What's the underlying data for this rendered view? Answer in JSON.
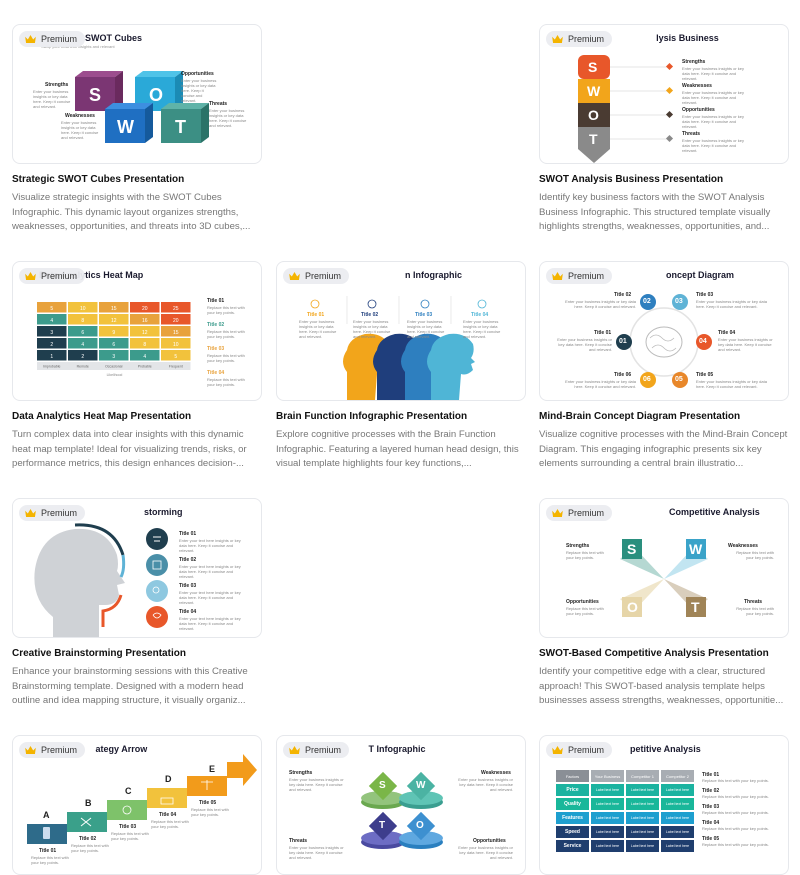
{
  "badge_label": "Premium",
  "cards": [
    {
      "title": "Strategic SWOT Cubes Presentation",
      "desc": "Visualize strategic insights with the SWOT Cubes Infographic. This dynamic layout organizes strengths, weaknesses, opportunities, and threats into 3D cubes,...",
      "slide_title": "SWOT Cubes",
      "slide_sub": "Swap your business insights and relevant",
      "labels": [
        "Strengths",
        "Weaknesses",
        "Opportunities",
        "Threats"
      ],
      "letters": [
        "S",
        "W",
        "O",
        "T"
      ],
      "body_text": "Enter your business insights or key data here. Keep it concise and relevant."
    },
    {
      "title": "SWOT Analysis Business Presentation",
      "desc": "Identify key business factors with the SWOT Analysis Business Infographic. This structured template visually highlights strengths, weaknesses, opportunities, and...",
      "slide_title": "SWOT Analysis Business",
      "labels": [
        "Strengths",
        "Weaknesses",
        "Opportunities",
        "Threats"
      ],
      "letters": [
        "S",
        "W",
        "O",
        "T"
      ],
      "body_text": "Enter your business insights or key data here. Keep it concise and relevant."
    },
    {
      "title": "Data Analytics Heat Map Presentation",
      "desc": "Turn complex data into clear insights with this dynamic heat map template! Ideal for visualizing trends, risks, or performance metrics, this design enhances decision-...",
      "slide_title": "Data Analytics Heat Map",
      "titles": [
        "Title 01",
        "Title 02",
        "Title 03",
        "Title 04"
      ],
      "body_text": "Replace this text with your key points.",
      "grid_rows": [
        [
          "5",
          "10",
          "15",
          "20",
          "25"
        ],
        [
          "4",
          "8",
          "12",
          "16",
          "20"
        ],
        [
          "3",
          "6",
          "9",
          "12",
          "15"
        ],
        [
          "2",
          "4",
          "6",
          "8",
          "10"
        ],
        [
          "1",
          "2",
          "3",
          "4",
          "5"
        ]
      ],
      "col_labels": [
        "Improbable",
        "Remote",
        "Occasional",
        "Probable",
        "Frequent"
      ],
      "axis_label": "Likelihood"
    },
    {
      "title": "Brain Function Infographic Presentation",
      "desc": "Explore cognitive processes with the Brain Function Infographic. Featuring a layered human head design, this visual template highlights four key functions,...",
      "slide_title": "Brain Function Infographic",
      "titles": [
        "Title 01",
        "Title 02",
        "Title 03",
        "Title 04"
      ],
      "body_text": "Enter your business insights or key data here. Keep it concise and relevant."
    },
    {
      "title": "Mind-Brain Concept Diagram Presentation",
      "desc": "Visualize cognitive processes with the Mind-Brain Concept Diagram. This engaging infographic presents six key elements surrounding a central brain illustratio...",
      "slide_title": "Mind-Brain Concept Diagram",
      "titles": [
        "Title 01",
        "Title 02",
        "Title 03",
        "Title 04",
        "Title 05",
        "Title 06"
      ],
      "numbers": [
        "01",
        "02",
        "03",
        "04",
        "05",
        "06"
      ],
      "body_text": "Enter your business insights or key data here. Keep it concise and relevant."
    },
    {
      "title": "Creative Brainstorming Presentation",
      "desc": "Enhance your brainstorming sessions with this Creative Brainstorming template. Designed with a modern head outline and idea mapping structure, it visually organiz...",
      "slide_title": "Creative Brainstorming",
      "titles": [
        "Title 01",
        "Title 02",
        "Title 03",
        "Title 04"
      ],
      "body_text": "Enter your text here insights or key data here. Keep it concise and relevant."
    },
    {
      "title": "SWOT-Based Competitive Analysis Presentation",
      "desc": "Identify your competitive edge with a clear, structured approach! This SWOT-based analysis template helps businesses assess strengths, weaknesses, opportunitie...",
      "slide_title": "SWOT-Based Competitive Analysis",
      "labels": [
        "Strengths",
        "Weaknesses",
        "Opportunities",
        "Threats"
      ],
      "letters": [
        "S",
        "W",
        "O",
        "T"
      ],
      "body_text": "Replace this text with your key points."
    },
    {
      "slide_title": "Strategy Arrow",
      "letters": [
        "A",
        "B",
        "C",
        "D",
        "E"
      ],
      "titles": [
        "Title 01",
        "Title 02",
        "Title 03",
        "Title 04",
        "Title 05"
      ],
      "body_text": "Replace this text with your key points."
    },
    {
      "slide_title": "SWOT Infographic",
      "labels": [
        "Strengths",
        "Weaknesses",
        "Threats",
        "Opportunities"
      ],
      "letters": [
        "S",
        "W",
        "T",
        "O"
      ],
      "body_text": "Enter your business insights or key data here. Keep it concise and relevant."
    },
    {
      "slide_title": "Competitive Analysis",
      "headers": [
        "Factors",
        "Your Business",
        "Competitor 1",
        "Competitor 2"
      ],
      "rows": [
        "Price",
        "Quality",
        "Features",
        "Speed",
        "Service"
      ],
      "cell_text": "Label text here",
      "titles": [
        "Title 01",
        "Title 02",
        "Title 03",
        "Title 04",
        "Title 05"
      ],
      "body_text": "Replace this text with your key points."
    }
  ]
}
